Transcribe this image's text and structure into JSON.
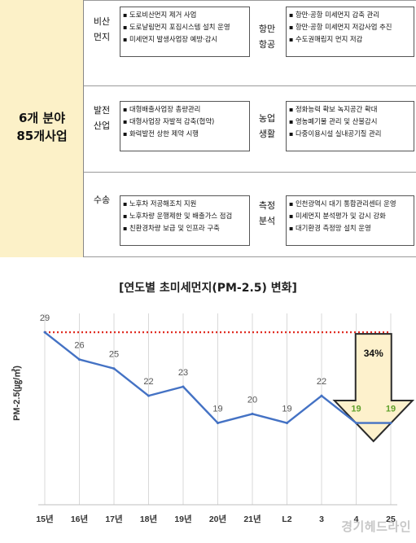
{
  "table": {
    "summary_line1": "6개 분야",
    "summary_line2": "85개사업",
    "sections": [
      {
        "left_cat": [
          "비산",
          "먼지"
        ],
        "left_items": [
          "도로비산먼지 제거 사업",
          "도로날림먼지 포집시스템 설치 운영",
          "미세먼지 발생사업장 예방·감시"
        ],
        "right_cat": [
          "항만",
          "항공"
        ],
        "right_items": [
          "항만·공항 미세먼지 감축 관리",
          "항만·공항 미세먼지 저감사업 추진",
          "수도권매립지 먼지 저감"
        ]
      },
      {
        "left_cat": [
          "발전",
          "산업"
        ],
        "left_items": [
          "대형배출사업장 총량관리",
          "대형사업장 자발적 감축(협약)",
          "화력발전 상한 제약 시행"
        ],
        "right_cat": [
          "농업",
          "생활"
        ],
        "right_items": [
          "정화능력 확보 녹지공간 확대",
          "영농폐기물 관리 및 산불감시",
          "다중이용시설 실내공기질 관리"
        ]
      },
      {
        "left_cat": [
          "수송"
        ],
        "left_items": [
          "노후차 저공해조치 지원",
          "노후차량 운행제한 및 배출가스 점검",
          "친환경차량 보급 및 인프라 구축"
        ],
        "right_cat": [
          "측정",
          "분석"
        ],
        "right_items": [
          "인천광역시 대기 통합관리센터 운영",
          "미세먼지 분석평가 및 감시 강화",
          "대기환경 측정망 설치 운영"
        ]
      }
    ]
  },
  "chart_data": {
    "type": "line",
    "title": "[연도별 초미세먼지(PM-2.5) 변화]",
    "ylabel": "PM-2.5(㎍/㎥)",
    "categories": [
      "15년",
      "16년",
      "17년",
      "18년",
      "19년",
      "20년",
      "21년",
      "22년",
      "23년",
      "24년",
      "25년"
    ],
    "x_tick_labels": [
      "15년",
      "16년",
      "17년",
      "18년",
      "19년",
      "20년",
      "21년",
      "L2",
      "3",
      "4",
      "25"
    ],
    "values": [
      29,
      26,
      25,
      22,
      23,
      19,
      20,
      19,
      22,
      19,
      19
    ],
    "value_labels": [
      "29",
      "26",
      "25",
      "22",
      "23",
      "19",
      "20",
      "19",
      "22",
      "19",
      "19"
    ],
    "ylim": [
      16,
      30
    ],
    "reference_value": 29,
    "annotation": "34%",
    "grid": "vertical",
    "colors": {
      "line": "#4472c4",
      "reference": "#e02b20",
      "highlight_label": "#5fa02a",
      "label": "#555555",
      "arrow_fill": "#fdf1cc",
      "arrow_stroke": "#2b2b2b"
    }
  },
  "watermark": "경기헤드라인"
}
